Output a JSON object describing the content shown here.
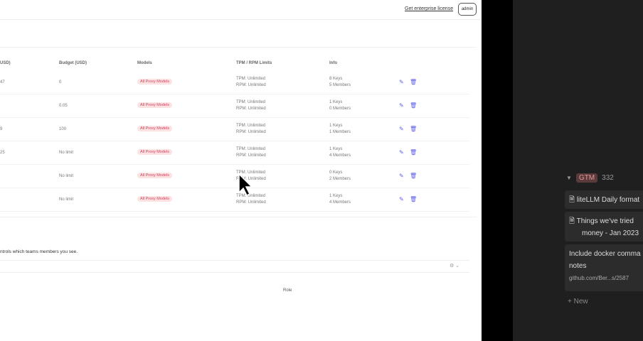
{
  "header": {
    "enterprise_link": "Get enterprise license",
    "user_button": "admin"
  },
  "table": {
    "headers": [
      "USD)",
      "Budget (USD)",
      "Models",
      "TPM / RPM Limits",
      "Info"
    ],
    "rows": [
      {
        "spend": "47",
        "budget": "0",
        "models": "All Proxy Models",
        "tpm": "TPM: Unlimited",
        "rpm": "RPM: Unlimited",
        "keys": "8 Keys",
        "members": "5 Members"
      },
      {
        "spend": "",
        "budget": "0.05",
        "models": "All Proxy Models",
        "tpm": "TPM: Unlimited",
        "rpm": "RPM: Unlimited",
        "keys": "1 Keys",
        "members": "0 Members"
      },
      {
        "spend": "9",
        "budget": "100",
        "models": "All Proxy Models",
        "tpm": "TPM: Unlimited",
        "rpm": "RPM: Unlimited",
        "keys": "1 Keys",
        "members": "1 Members"
      },
      {
        "spend": "25",
        "budget": "No limit",
        "models": "All Proxy Models",
        "tpm": "TPM: Unlimited",
        "rpm": "RPM: Unlimited",
        "keys": "1 Keys",
        "members": "4 Members"
      },
      {
        "spend": "",
        "budget": "No limit",
        "models": "All Proxy Models",
        "tpm": "TPM: Unlimited",
        "rpm": "RPM: Unlimited",
        "keys": "0 Keys",
        "members": "2 Members"
      },
      {
        "spend": "",
        "budget": "No limit",
        "models": "All Proxy Models",
        "tpm": "TPM: Unlimited",
        "rpm": "RPM: Unlimited",
        "keys": "1 Keys",
        "members": "4 Members"
      }
    ]
  },
  "members": {
    "note": "ntrols which teams members you see.",
    "role_header": "Role"
  },
  "side": {
    "group": "GTM",
    "count": "332",
    "cards": [
      "liteLLM Daily format",
      "Things we've tried",
      "money - Jan 2023",
      "Include docker comma",
      "notes",
      "github.com/Ber...s/2587"
    ],
    "new_label": "New"
  },
  "colors": {
    "accent": "#5a5ae6",
    "pill_bg": "#fde2e2"
  }
}
